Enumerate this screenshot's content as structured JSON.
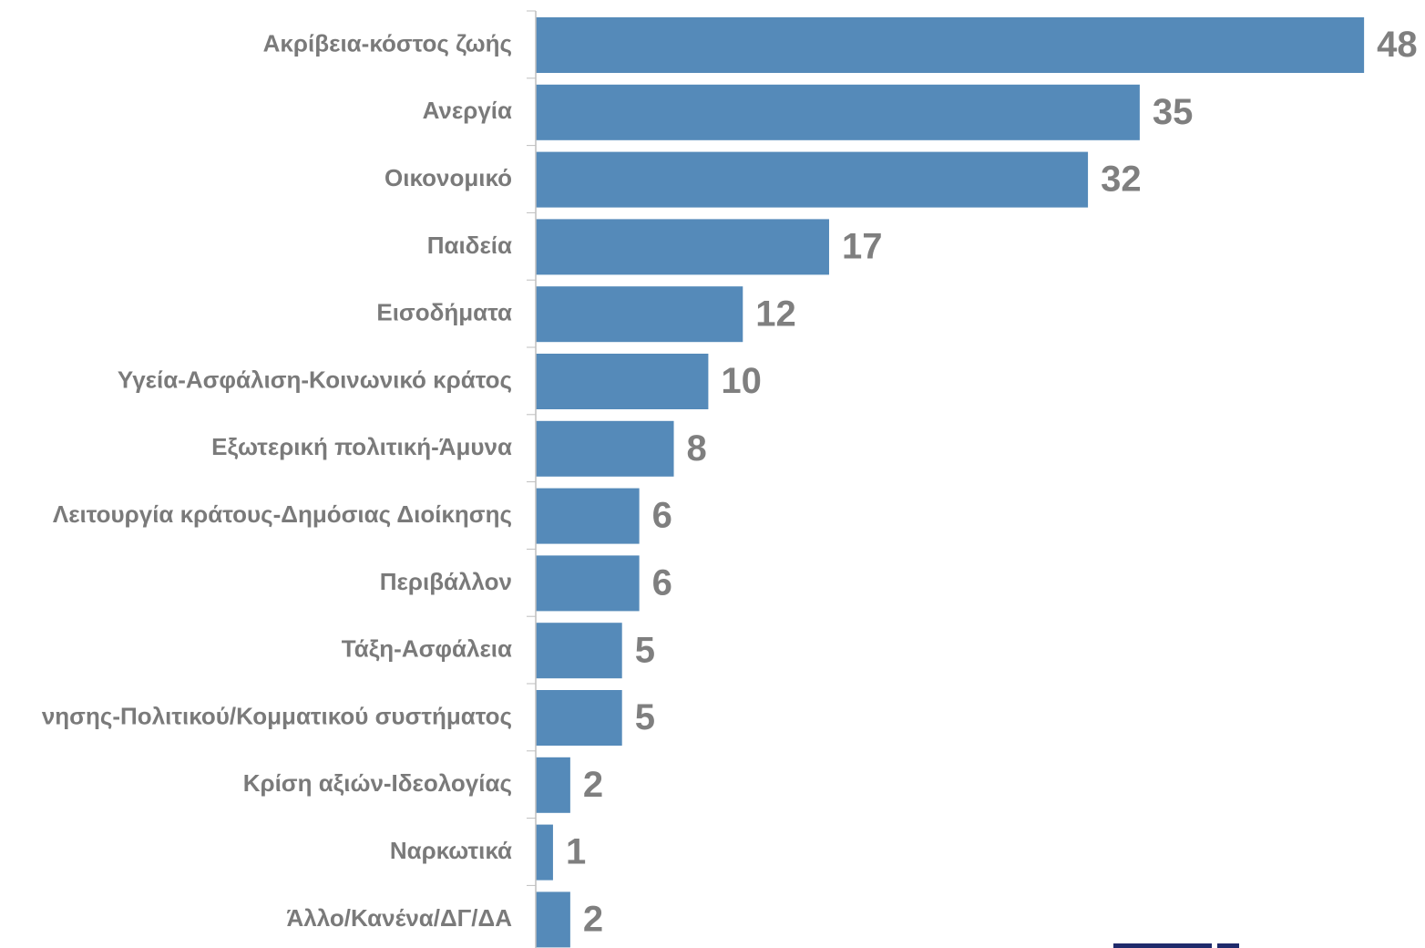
{
  "chart_data": {
    "type": "bar",
    "orientation": "horizontal",
    "categories": [
      "Ακρίβεια-κόστος ζωής",
      "Ανεργία",
      "Οικονομικό",
      "Παιδεία",
      "Εισοδήματα",
      "Υγεία-Ασφάλιση-Κοινωνικό κράτος",
      "Εξωτερική πολιτική-Άμυνα",
      "Λειτουργία κράτους-Δημόσιας Διοίκησης",
      "Περιβάλλον",
      "Τάξη-Ασφάλεια",
      "νησης-Πολιτικού/Κομματικού συστήματος",
      "Κρίση αξιών-Ιδεολογίας",
      "Ναρκωτικά",
      "Άλλο/Κανένα/ΔΓ/ΔΑ"
    ],
    "values": [
      48,
      35,
      32,
      17,
      12,
      10,
      8,
      6,
      6,
      5,
      5,
      2,
      1,
      2
    ],
    "color": "#558ab9"
  }
}
